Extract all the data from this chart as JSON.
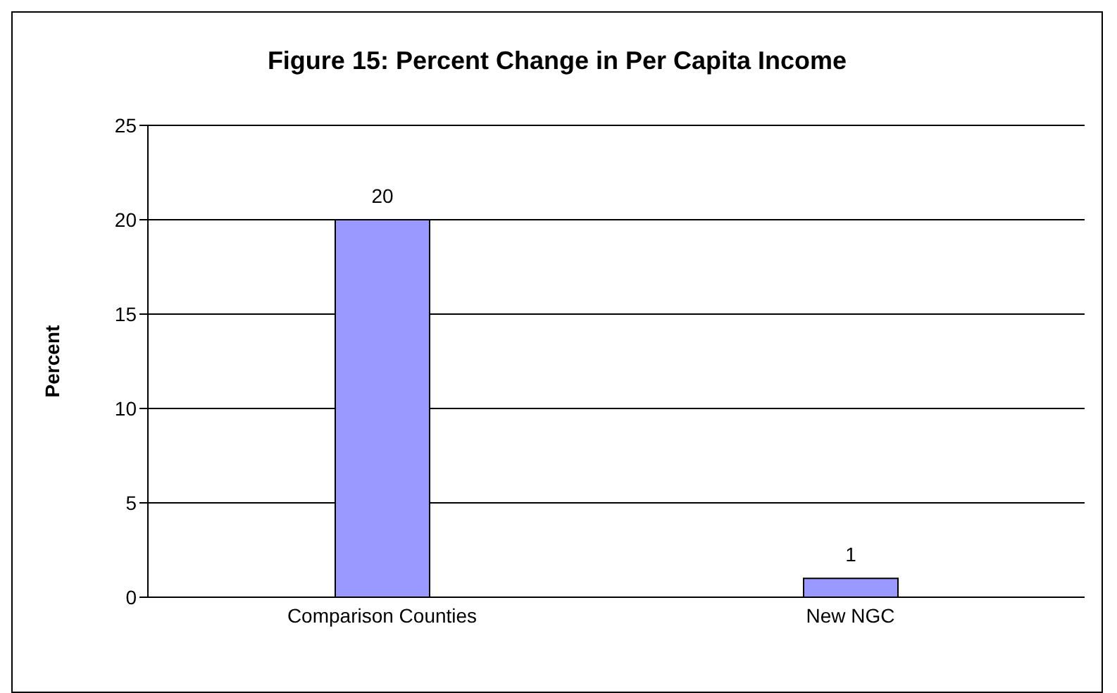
{
  "chart_data": {
    "type": "bar",
    "title": "Figure 15: Percent Change in Per Capita Income",
    "ylabel": "Percent",
    "categories": [
      "Comparison Counties",
      "New NGC"
    ],
    "values": [
      20,
      1
    ],
    "color": "#9999ff",
    "ylim": [
      0,
      25
    ],
    "yticks": [
      0,
      5,
      10,
      15,
      20,
      25
    ],
    "grid": "y",
    "data_labels": true
  }
}
